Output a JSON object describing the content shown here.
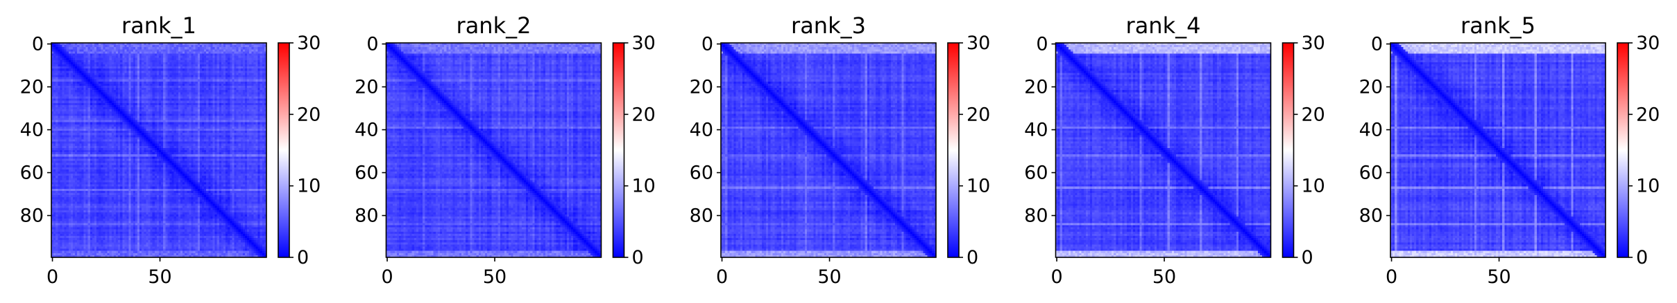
{
  "chart_data": [
    {
      "type": "heatmap",
      "title": "rank_1",
      "xlabel": "",
      "ylabel": "",
      "x_ticks": [
        "0",
        "50"
      ],
      "y_ticks": [
        "0",
        "20",
        "40",
        "60",
        "80"
      ],
      "x_tick_values": [
        0,
        50
      ],
      "y_tick_values": [
        0,
        20,
        40,
        60,
        80
      ],
      "matrix_size": 100,
      "colormap": "bwr",
      "colorbar": {
        "range": [
          0,
          30
        ],
        "ticks": [
          "0",
          "10",
          "20",
          "30"
        ],
        "tick_values": [
          0,
          10,
          20,
          30
        ]
      },
      "overview": {
        "diagonal_value": 0,
        "typical_value": 4,
        "edge_band_value": 6,
        "bright_rows": [
          17,
          36,
          40,
          52,
          68,
          84
        ],
        "bright_row_value": 7
      }
    },
    {
      "type": "heatmap",
      "title": "rank_2",
      "xlabel": "",
      "ylabel": "",
      "x_ticks": [
        "0",
        "50"
      ],
      "y_ticks": [
        "0",
        "20",
        "40",
        "60",
        "80"
      ],
      "x_tick_values": [
        0,
        50
      ],
      "y_tick_values": [
        0,
        20,
        40,
        60,
        80
      ],
      "matrix_size": 100,
      "colormap": "bwr",
      "colorbar": {
        "range": [
          0,
          30
        ],
        "ticks": [
          "0",
          "10",
          "20",
          "30"
        ],
        "tick_values": [
          0,
          10,
          20,
          30
        ]
      },
      "overview": {
        "diagonal_value": 0,
        "typical_value": 4,
        "edge_band_value": 7,
        "bright_rows": [
          17,
          39,
          52,
          68,
          84
        ],
        "bright_row_value": 7
      }
    },
    {
      "type": "heatmap",
      "title": "rank_3",
      "xlabel": "",
      "ylabel": "",
      "x_ticks": [
        "0",
        "50"
      ],
      "y_ticks": [
        "0",
        "20",
        "40",
        "60",
        "80"
      ],
      "x_tick_values": [
        0,
        50
      ],
      "y_tick_values": [
        0,
        20,
        40,
        60,
        80
      ],
      "matrix_size": 100,
      "colormap": "bwr",
      "colorbar": {
        "range": [
          0,
          30
        ],
        "ticks": [
          "0",
          "10",
          "20",
          "30"
        ],
        "tick_values": [
          0,
          10,
          20,
          30
        ]
      },
      "overview": {
        "diagonal_value": 0,
        "typical_value": 4,
        "edge_band_value": 9,
        "bright_rows": [
          2,
          39,
          52,
          67,
          84
        ],
        "bright_row_value": 8
      }
    },
    {
      "type": "heatmap",
      "title": "rank_4",
      "xlabel": "",
      "ylabel": "",
      "x_ticks": [
        "0",
        "50"
      ],
      "y_ticks": [
        "0",
        "20",
        "40",
        "60",
        "80"
      ],
      "x_tick_values": [
        0,
        50
      ],
      "y_tick_values": [
        0,
        20,
        40,
        60,
        80
      ],
      "matrix_size": 100,
      "colormap": "bwr",
      "colorbar": {
        "range": [
          0,
          30
        ],
        "ticks": [
          "0",
          "10",
          "20",
          "30"
        ],
        "tick_values": [
          0,
          10,
          20,
          30
        ]
      },
      "overview": {
        "diagonal_value": 0,
        "typical_value": 4,
        "edge_band_value": 11,
        "bright_rows": [
          2,
          39,
          52,
          67,
          84
        ],
        "bright_row_value": 9
      }
    },
    {
      "type": "heatmap",
      "title": "rank_5",
      "xlabel": "",
      "ylabel": "",
      "x_ticks": [
        "0",
        "50"
      ],
      "y_ticks": [
        "0",
        "20",
        "40",
        "60",
        "80"
      ],
      "x_tick_values": [
        0,
        50
      ],
      "y_tick_values": [
        0,
        20,
        40,
        60,
        80
      ],
      "matrix_size": 100,
      "colormap": "bwr",
      "colorbar": {
        "range": [
          0,
          30
        ],
        "ticks": [
          "0",
          "10",
          "20",
          "30"
        ],
        "tick_values": [
          0,
          10,
          20,
          30
        ]
      },
      "overview": {
        "diagonal_value": 0,
        "typical_value": 4,
        "edge_band_value": 12,
        "bright_rows": [
          2,
          39,
          52,
          67,
          84
        ],
        "bright_row_value": 10
      }
    }
  ]
}
